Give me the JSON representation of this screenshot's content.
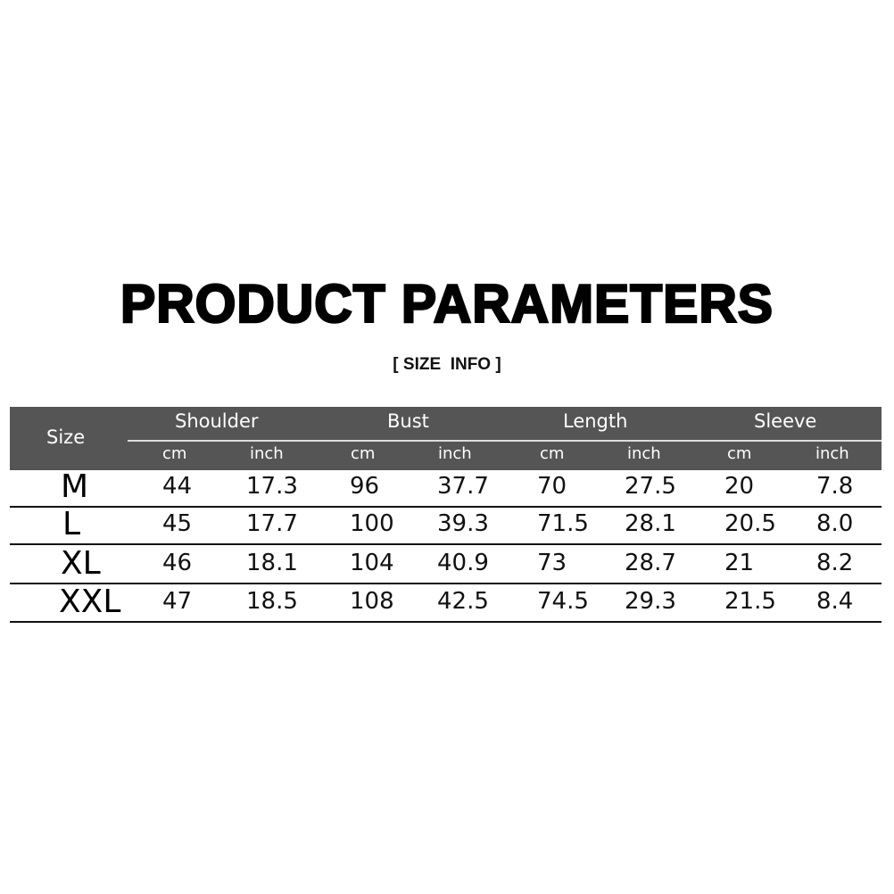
{
  "title": "PRODUCT PARAMETERS",
  "subtitle": "[ SIZE  INFO ]",
  "table": {
    "size_header": "Size",
    "groups": [
      "Shoulder",
      "Bust",
      "Length",
      "Sleeve"
    ],
    "units": [
      "cm",
      "inch",
      "cm",
      "inch",
      "cm",
      "inch",
      "cm",
      "inch"
    ],
    "rows": [
      {
        "size": "M",
        "values": [
          "44",
          "17.3",
          "96",
          "37.7",
          "70",
          "27.5",
          "20",
          "7.8"
        ]
      },
      {
        "size": "L",
        "values": [
          "45",
          "17.7",
          "100",
          "39.3",
          "71.5",
          "28.1",
          "20.5",
          "8.0"
        ]
      },
      {
        "size": "XL",
        "values": [
          "46",
          "18.1",
          "104",
          "40.9",
          "73",
          "28.7",
          "21",
          "8.2"
        ]
      },
      {
        "size": "XXL",
        "values": [
          "47",
          "18.5",
          "108",
          "42.5",
          "74.5",
          "29.3",
          "21.5",
          "8.4"
        ]
      }
    ]
  },
  "colors": {
    "header_bg": "#555555",
    "header_text": "#ffffff"
  }
}
